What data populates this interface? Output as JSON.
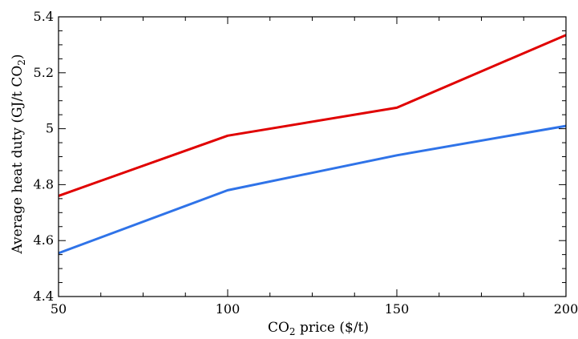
{
  "chart_data": {
    "type": "line",
    "title": "",
    "xlabel_main": "CO",
    "xlabel_sub": "2",
    "xlabel_rest": " price ($/t)",
    "ylabel_main": "Average heat duty (GJ/t CO",
    "ylabel_sub": "2",
    "ylabel_rest": ")",
    "x": [
      50,
      100,
      150,
      200
    ],
    "xlim": [
      50,
      200
    ],
    "ylim": [
      4.4,
      5.4
    ],
    "xticks": [
      50,
      100,
      150,
      200
    ],
    "xtick_labels": [
      "50",
      "100",
      "150",
      "200"
    ],
    "yticks": [
      4.4,
      4.6,
      4.8,
      5.0,
      5.2,
      5.4
    ],
    "ytick_labels": [
      "4.4",
      "4.6",
      "4.8",
      "5",
      "5.2",
      "5.4"
    ],
    "grid": false,
    "series": [
      {
        "values": [
          4.76,
          4.975,
          5.075,
          5.335
        ],
        "color": "#e00000"
      },
      {
        "values": [
          4.555,
          4.78,
          4.905,
          5.01
        ],
        "color": "#2f73e8"
      }
    ]
  }
}
